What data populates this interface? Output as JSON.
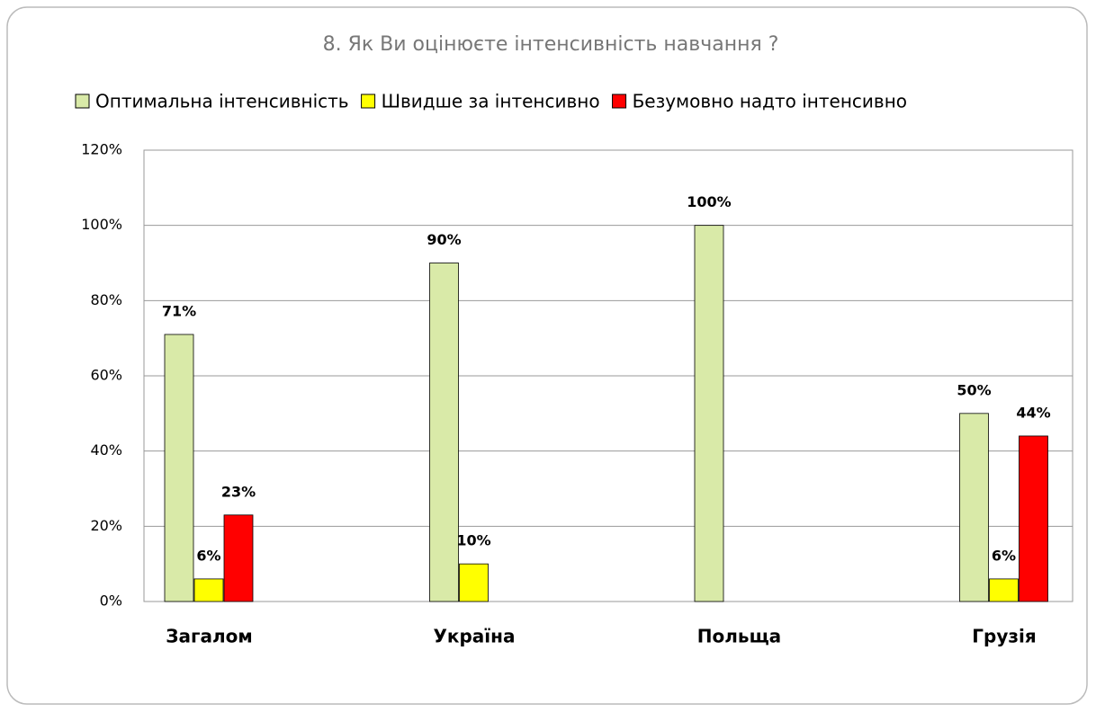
{
  "chart_data": {
    "type": "bar",
    "title": "8. Як Ви оцінюєте інтенсивність навчання ?",
    "categories": [
      "Загалом",
      "Україна",
      "Польща",
      "Грузія"
    ],
    "series": [
      {
        "name": "Оптимальна інтенсивність",
        "color": "#d9eaa8",
        "values": [
          71,
          90,
          100,
          50
        ],
        "value_labels": [
          "71%",
          "90%",
          "100%",
          "50%"
        ]
      },
      {
        "name": "Швидше за інтенсивно",
        "color": "#ffff00",
        "values": [
          6,
          10,
          null,
          6
        ],
        "value_labels": [
          "6%",
          "10%",
          null,
          "6%"
        ]
      },
      {
        "name": "Безумовно надто інтенсивно",
        "color": "#ff0000",
        "values": [
          23,
          null,
          null,
          44
        ],
        "value_labels": [
          "23%",
          null,
          null,
          "44%"
        ]
      }
    ],
    "ylim": [
      0,
      120
    ],
    "yticks": [
      {
        "value": 0,
        "label": "0%"
      },
      {
        "value": 20,
        "label": "20%"
      },
      {
        "value": 40,
        "label": "40%"
      },
      {
        "value": 60,
        "label": "60%"
      },
      {
        "value": 80,
        "label": "80%"
      },
      {
        "value": 100,
        "label": "100%"
      },
      {
        "value": 120,
        "label": "120%"
      }
    ],
    "grid": true
  }
}
